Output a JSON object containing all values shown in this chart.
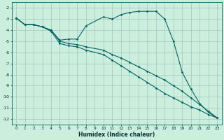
{
  "xlabel": "Humidex (Indice chaleur)",
  "bg_color": "#cceedd",
  "grid_color": "#99bbbb",
  "line_color": "#006666",
  "xlim": [
    -0.5,
    23.5
  ],
  "ylim": [
    -12.5,
    -1.5
  ],
  "yticks": [
    -2,
    -3,
    -4,
    -5,
    -6,
    -7,
    -8,
    -9,
    -10,
    -11,
    -12
  ],
  "xticks": [
    0,
    1,
    2,
    3,
    4,
    5,
    6,
    7,
    8,
    9,
    10,
    11,
    12,
    13,
    14,
    15,
    16,
    17,
    18,
    19,
    20,
    21,
    22,
    23
  ],
  "series": [
    {
      "x": [
        0,
        1,
        2,
        3,
        4,
        5,
        6,
        7,
        8,
        10,
        11,
        12,
        13,
        14,
        15,
        16,
        17,
        18,
        19,
        20,
        21,
        22,
        23
      ],
      "y": [
        -2.9,
        -3.5,
        -3.5,
        -3.7,
        -4.0,
        -4.9,
        -4.8,
        -4.8,
        -3.6,
        -2.8,
        -3.0,
        -2.6,
        -2.4,
        -2.3,
        -2.3,
        -2.3,
        -3.0,
        -5.0,
        -7.8,
        -9.3,
        -10.6,
        -11.4,
        -11.9
      ]
    },
    {
      "x": [
        0,
        1,
        2,
        3,
        4,
        5,
        6,
        7,
        8,
        10,
        11,
        12,
        13,
        14,
        15,
        16,
        17,
        18,
        19,
        20,
        21,
        22,
        23
      ],
      "y": [
        -2.9,
        -3.5,
        -3.5,
        -3.7,
        -4.0,
        -5.0,
        -5.2,
        -5.3,
        -5.5,
        -5.8,
        -6.2,
        -6.5,
        -6.9,
        -7.3,
        -7.7,
        -8.1,
        -8.5,
        -9.0,
        -9.5,
        -10.1,
        -10.7,
        -11.3,
        -11.9
      ]
    },
    {
      "x": [
        0,
        1,
        2,
        3,
        4,
        5,
        6,
        7,
        8,
        10,
        11,
        12,
        13,
        14,
        15,
        16,
        17,
        18,
        19,
        20,
        21,
        22,
        23
      ],
      "y": [
        -2.9,
        -3.5,
        -3.5,
        -3.7,
        -4.1,
        -5.2,
        -5.4,
        -5.5,
        -5.8,
        -6.2,
        -6.7,
        -7.2,
        -7.7,
        -8.2,
        -8.7,
        -9.2,
        -9.7,
        -10.1,
        -10.5,
        -10.9,
        -11.2,
        -11.6,
        -11.9
      ]
    }
  ]
}
